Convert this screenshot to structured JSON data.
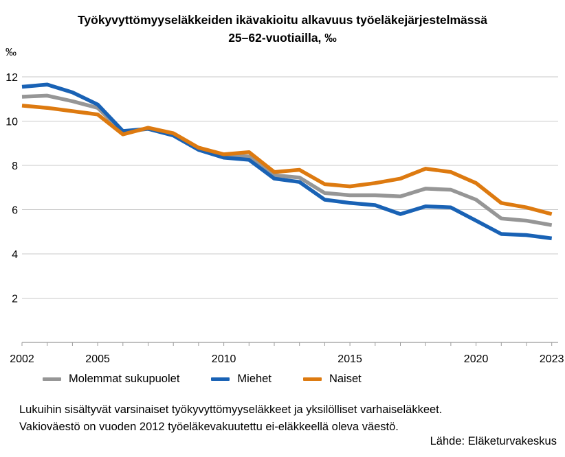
{
  "title": {
    "line1": "Työkyvyttömyyseläkkeiden ikävakioitu alkavuus työeläkejärjestelmässä",
    "line2": "25–62-vuotiailla, ‰"
  },
  "y_axis": {
    "unit": "‰",
    "ticks": [
      2,
      4,
      6,
      8,
      10,
      12
    ],
    "min": 0,
    "max": 12
  },
  "x_axis": {
    "labeled_years": [
      2002,
      2005,
      2010,
      2015,
      2020,
      2023
    ]
  },
  "chart_data": {
    "type": "line",
    "title": "Työkyvyttömyyseläkkeiden ikävakioitu alkavuus työeläkejärjestelmässä 25–62-vuotiailla, ‰",
    "xlabel": "",
    "ylabel": "‰",
    "ylim": [
      0,
      12
    ],
    "grid": "horizontal",
    "legend_position": "bottom",
    "x": [
      2002,
      2003,
      2004,
      2005,
      2006,
      2007,
      2008,
      2009,
      2010,
      2011,
      2012,
      2013,
      2014,
      2015,
      2016,
      2017,
      2018,
      2019,
      2020,
      2021,
      2022,
      2023
    ],
    "series": [
      {
        "name": "Molemmat sukupuolet",
        "color": "#969696",
        "values": [
          11.1,
          11.15,
          10.9,
          10.6,
          9.5,
          9.65,
          9.4,
          8.75,
          8.45,
          8.4,
          7.55,
          7.45,
          6.75,
          6.65,
          6.65,
          6.6,
          6.95,
          6.9,
          6.45,
          5.6,
          5.5,
          5.3
        ]
      },
      {
        "name": "Miehet",
        "color": "#1962b5",
        "values": [
          11.55,
          11.65,
          11.3,
          10.75,
          9.55,
          9.65,
          9.35,
          8.7,
          8.35,
          8.25,
          7.4,
          7.25,
          6.45,
          6.3,
          6.2,
          5.8,
          6.15,
          6.1,
          5.5,
          4.9,
          4.85,
          4.7
        ]
      },
      {
        "name": "Naiset",
        "color": "#dd7a10",
        "values": [
          10.7,
          10.6,
          10.45,
          10.3,
          9.4,
          9.7,
          9.45,
          8.8,
          8.5,
          8.6,
          7.7,
          7.8,
          7.15,
          7.05,
          7.2,
          7.4,
          7.85,
          7.7,
          7.2,
          6.3,
          6.1,
          5.8
        ]
      }
    ]
  },
  "legend": {
    "items": [
      "Molemmat sukupuolet",
      "Miehet",
      "Naiset"
    ]
  },
  "footer": {
    "note1": "Lukuihin sisältyvät varsinaiset työkyvyttömyyseläkkeet ja yksilölliset varhaiseläkkeet.",
    "note2": "Vakioväestö on vuoden 2012 työeläkevakuutettu ei-eläkkeellä oleva väestö.",
    "source": "Lähde: Eläketurvakeskus"
  },
  "style": {
    "gridline_color": "#c8c8c8",
    "axis_color": "#9b9b9b",
    "text_color": "#000000"
  }
}
